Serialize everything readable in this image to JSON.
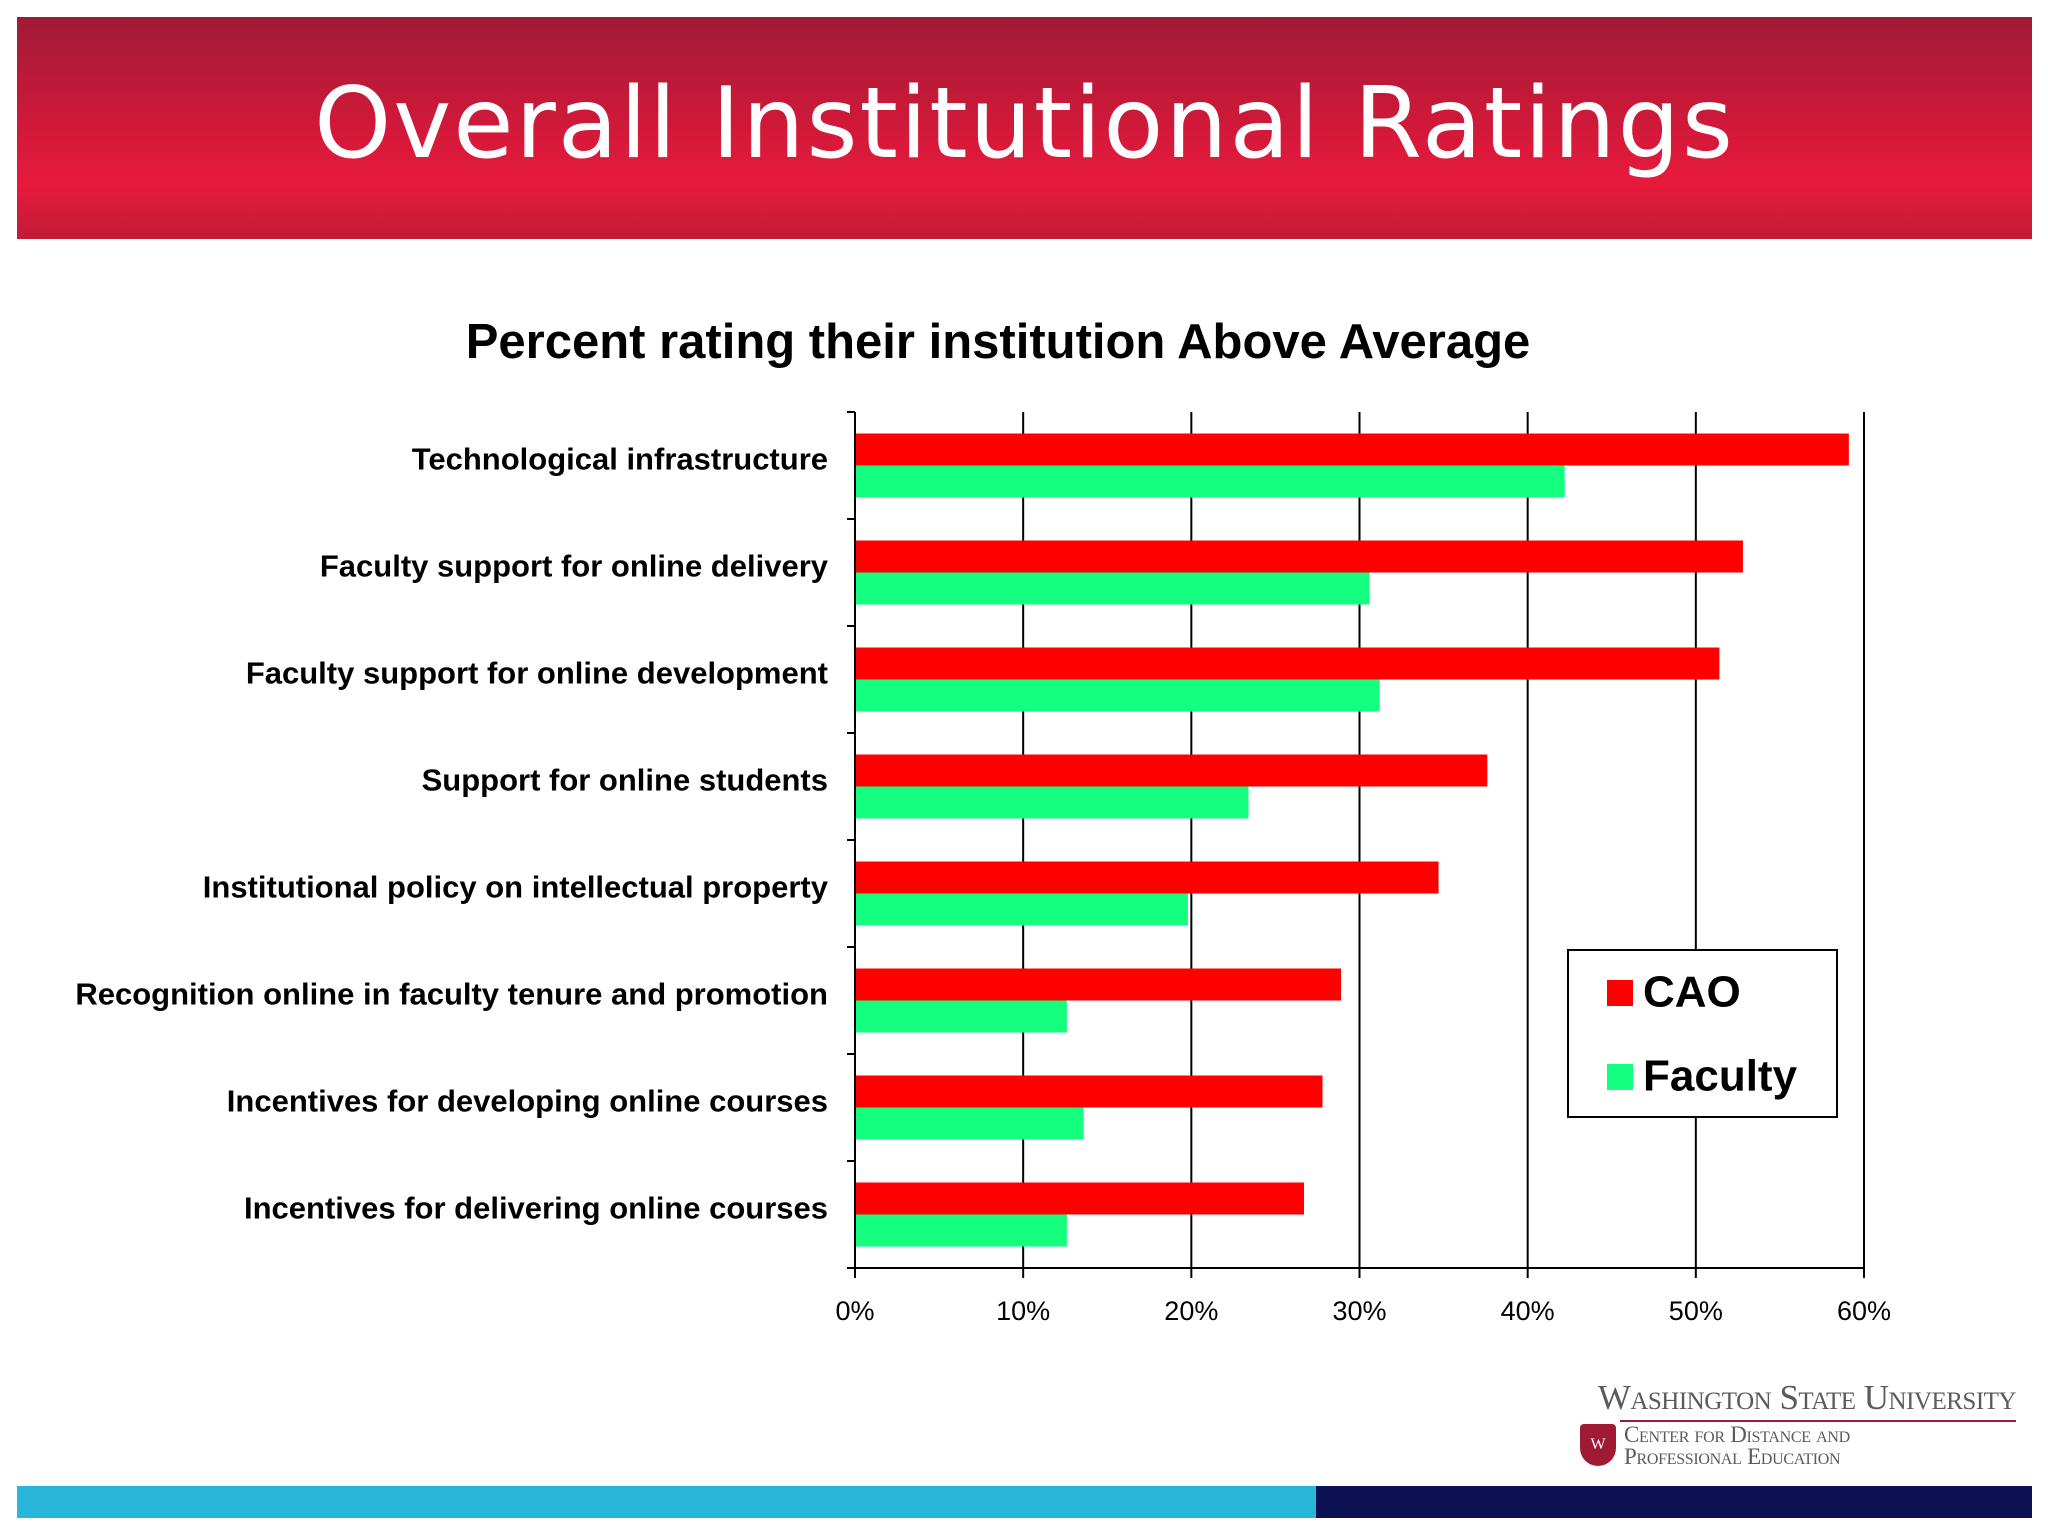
{
  "slide": {
    "title": "Overall Institutional Ratings"
  },
  "logo": {
    "name": "Washington State University",
    "unit_line1": "Center for Distance and",
    "unit_line2": "Professional Education"
  },
  "chart_data": {
    "type": "bar",
    "orientation": "horizontal",
    "title": "Percent rating their institution Above Average",
    "categories": [
      "Technological infrastructure",
      "Faculty support for online delivery",
      "Faculty support for online development",
      "Support for online students",
      "Institutional policy on intellectual property",
      "Recognition online in faculty tenure and promotion",
      "Incentives for developing online courses",
      "Incentives for delivering online courses"
    ],
    "series": [
      {
        "name": "CAO",
        "color": "#ff0000",
        "values": [
          59.1,
          52.8,
          51.4,
          37.6,
          34.7,
          28.9,
          27.8,
          26.7
        ]
      },
      {
        "name": "Faculty",
        "color": "#14ff7f",
        "values": [
          42.2,
          30.6,
          31.2,
          23.4,
          19.8,
          12.6,
          13.6,
          12.6
        ]
      }
    ],
    "xlim": [
      0,
      60
    ],
    "ticks": [
      "0%",
      "10%",
      "20%",
      "30%",
      "40%",
      "50%",
      "60%"
    ],
    "grid": "vertical major gridlines",
    "legend_position": "right-bottom"
  }
}
